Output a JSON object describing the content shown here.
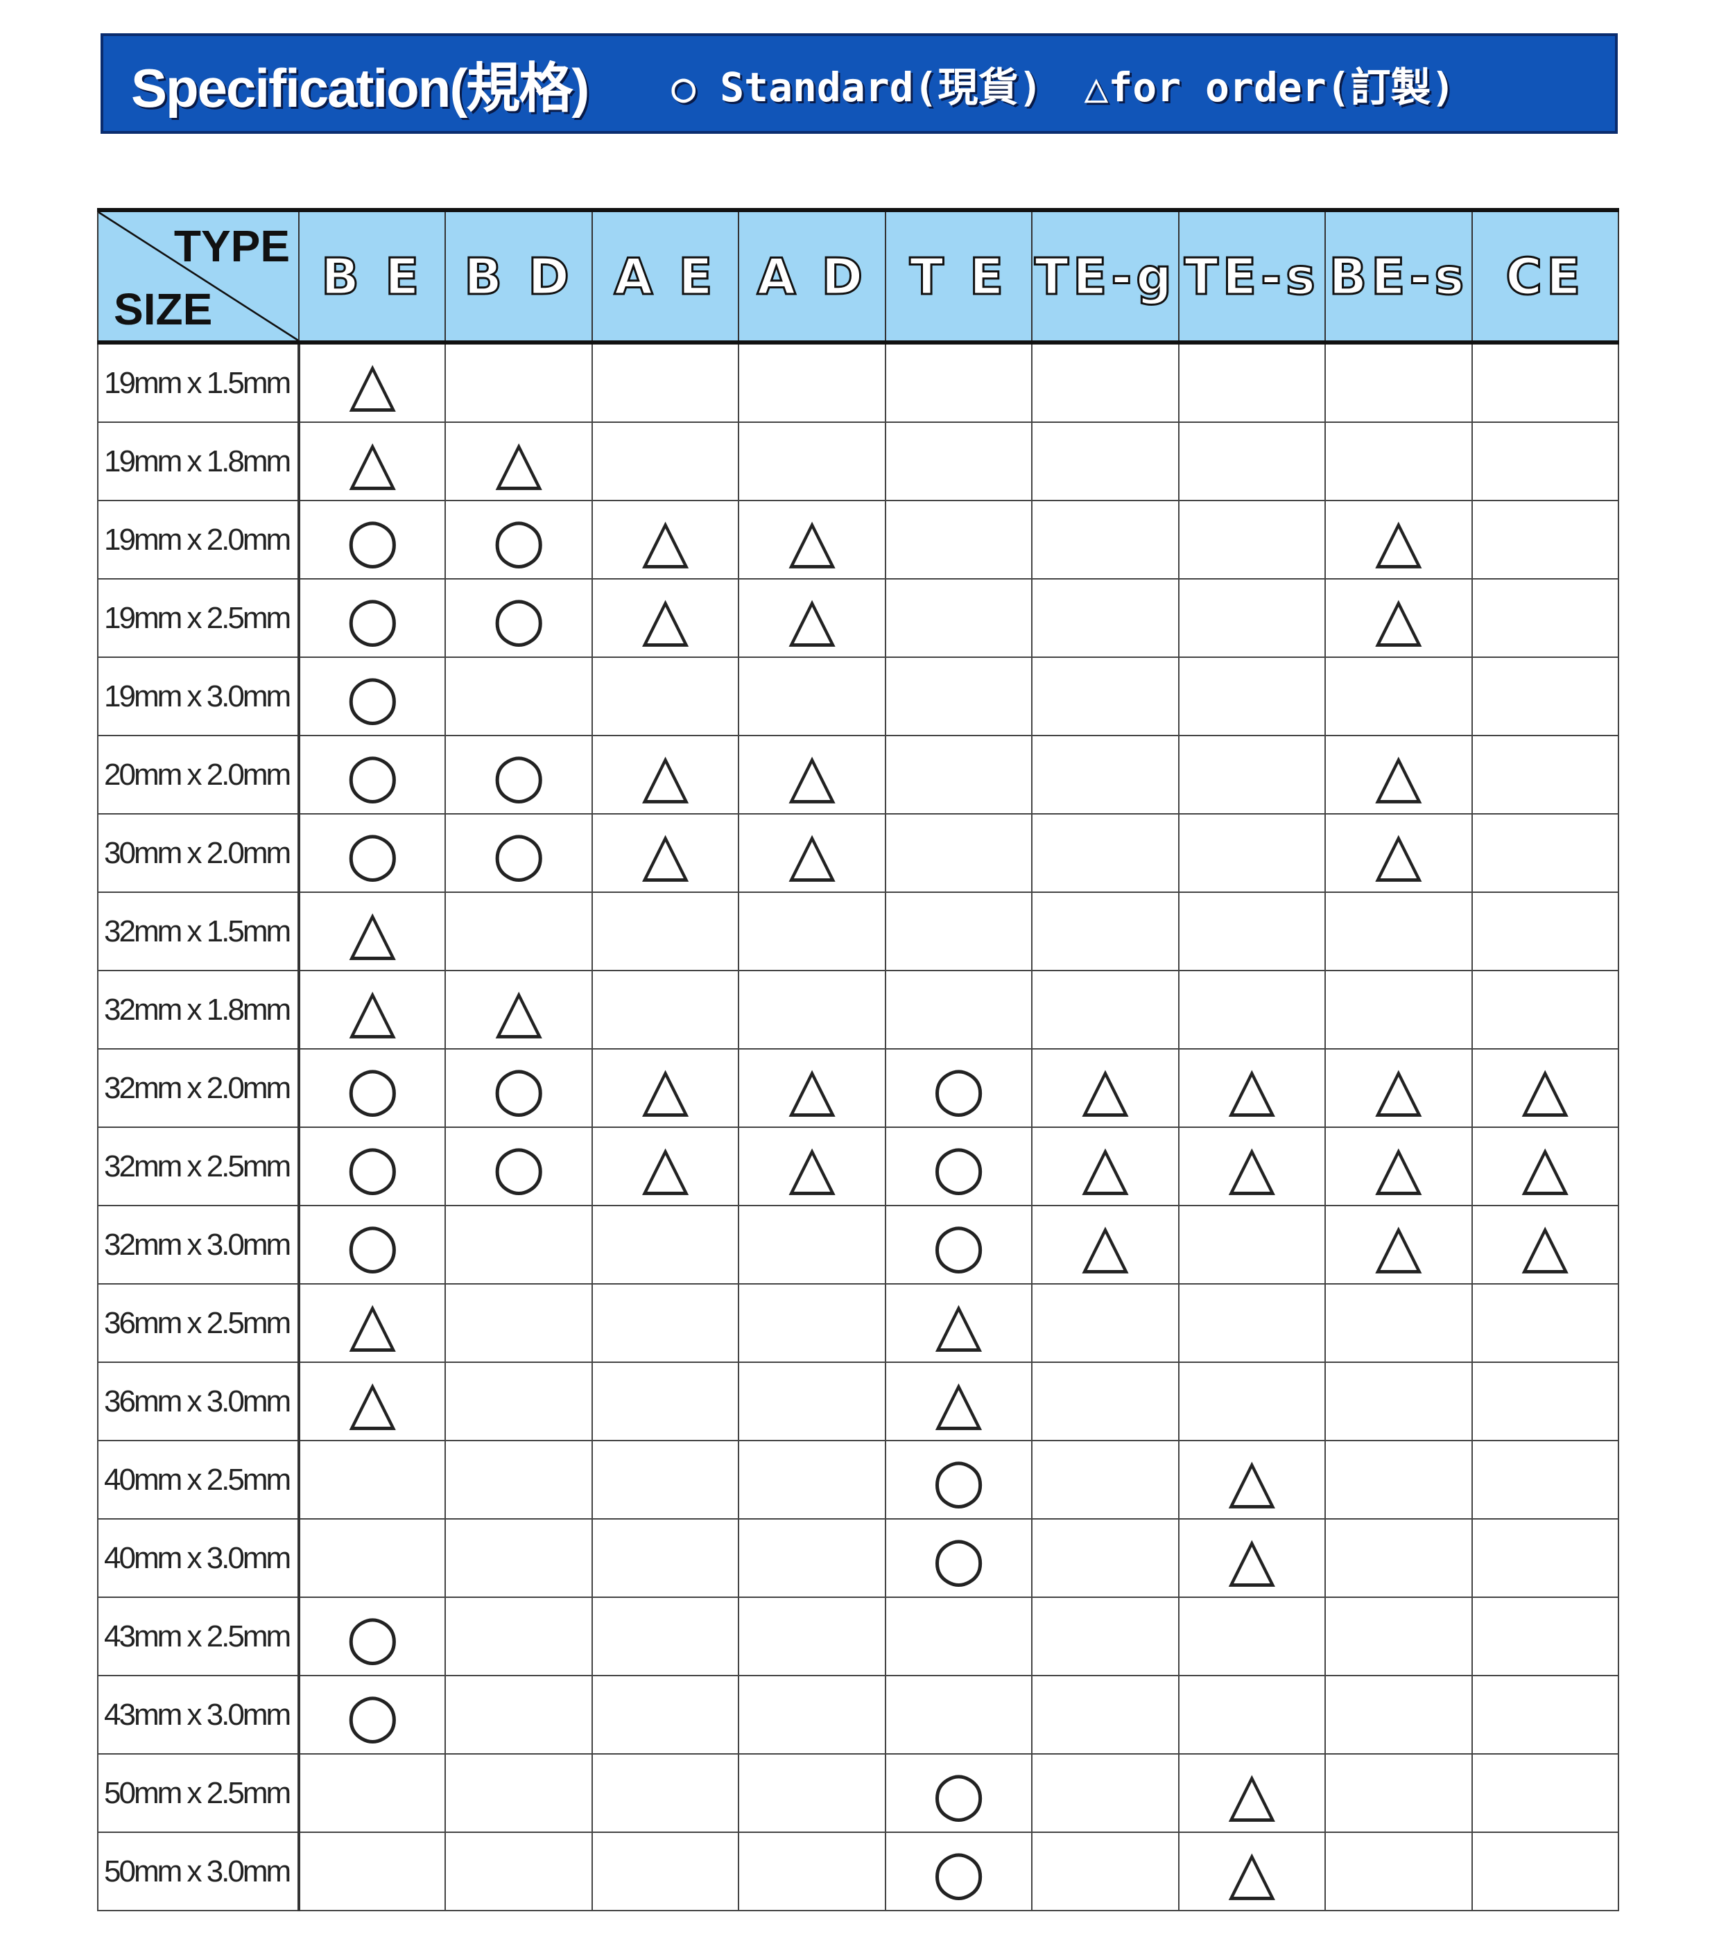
{
  "banner": {
    "title": "Specification(規格)",
    "legend_standard": "○ Standard(現貨)",
    "legend_order": "△for order(訂製)"
  },
  "colors": {
    "banner": "#1155b8",
    "header": "#9fd6f5"
  },
  "table": {
    "corner_type": "TYPE",
    "corner_size": "SIZE",
    "columns": [
      "B E",
      "B D",
      "A E",
      "A D",
      "T E",
      "TE-g",
      "TE-s",
      "BE-s",
      "CE"
    ],
    "rows": [
      {
        "size": "19mm x 1.5mm",
        "marks": [
          "△",
          "",
          "",
          "",
          "",
          "",
          "",
          "",
          ""
        ]
      },
      {
        "size": "19mm x 1.8mm",
        "marks": [
          "△",
          "△",
          "",
          "",
          "",
          "",
          "",
          "",
          ""
        ]
      },
      {
        "size": "19mm x 2.0mm",
        "marks": [
          "○",
          "○",
          "△",
          "△",
          "",
          "",
          "",
          "△",
          ""
        ]
      },
      {
        "size": "19mm x 2.5mm",
        "marks": [
          "○",
          "○",
          "△",
          "△",
          "",
          "",
          "",
          "△",
          ""
        ]
      },
      {
        "size": "19mm x 3.0mm",
        "marks": [
          "○",
          "",
          "",
          "",
          "",
          "",
          "",
          "",
          ""
        ]
      },
      {
        "size": "20mm x 2.0mm",
        "marks": [
          "○",
          "○",
          "△",
          "△",
          "",
          "",
          "",
          "△",
          ""
        ]
      },
      {
        "size": "30mm x 2.0mm",
        "marks": [
          "○",
          "○",
          "△",
          "△",
          "",
          "",
          "",
          "△",
          ""
        ]
      },
      {
        "size": "32mm x 1.5mm",
        "marks": [
          "△",
          "",
          "",
          "",
          "",
          "",
          "",
          "",
          ""
        ]
      },
      {
        "size": "32mm x 1.8mm",
        "marks": [
          "△",
          "△",
          "",
          "",
          "",
          "",
          "",
          "",
          ""
        ]
      },
      {
        "size": "32mm x 2.0mm",
        "marks": [
          "○",
          "○",
          "△",
          "△",
          "○",
          "△",
          "△",
          "△",
          "△"
        ]
      },
      {
        "size": "32mm x 2.5mm",
        "marks": [
          "○",
          "○",
          "△",
          "△",
          "○",
          "△",
          "△",
          "△",
          "△"
        ]
      },
      {
        "size": "32mm x 3.0mm",
        "marks": [
          "○",
          "",
          "",
          "",
          "○",
          "△",
          "",
          "△",
          "△"
        ]
      },
      {
        "size": "36mm x 2.5mm",
        "marks": [
          "△",
          "",
          "",
          "",
          "△",
          "",
          "",
          "",
          ""
        ]
      },
      {
        "size": "36mm x 3.0mm",
        "marks": [
          "△",
          "",
          "",
          "",
          "△",
          "",
          "",
          "",
          ""
        ]
      },
      {
        "size": "40mm x 2.5mm",
        "marks": [
          "",
          "",
          "",
          "",
          "○",
          "",
          "△",
          "",
          ""
        ]
      },
      {
        "size": "40mm x 3.0mm",
        "marks": [
          "",
          "",
          "",
          "",
          "○",
          "",
          "△",
          "",
          ""
        ]
      },
      {
        "size": "43mm x 2.5mm",
        "marks": [
          "○",
          "",
          "",
          "",
          "",
          "",
          "",
          "",
          ""
        ]
      },
      {
        "size": "43mm x 3.0mm",
        "marks": [
          "○",
          "",
          "",
          "",
          "",
          "",
          "",
          "",
          ""
        ]
      },
      {
        "size": "50mm x 2.5mm",
        "marks": [
          "",
          "",
          "",
          "",
          "○",
          "",
          "△",
          "",
          ""
        ]
      },
      {
        "size": "50mm x 3.0mm",
        "marks": [
          "",
          "",
          "",
          "",
          "○",
          "",
          "△",
          "",
          ""
        ]
      }
    ]
  }
}
